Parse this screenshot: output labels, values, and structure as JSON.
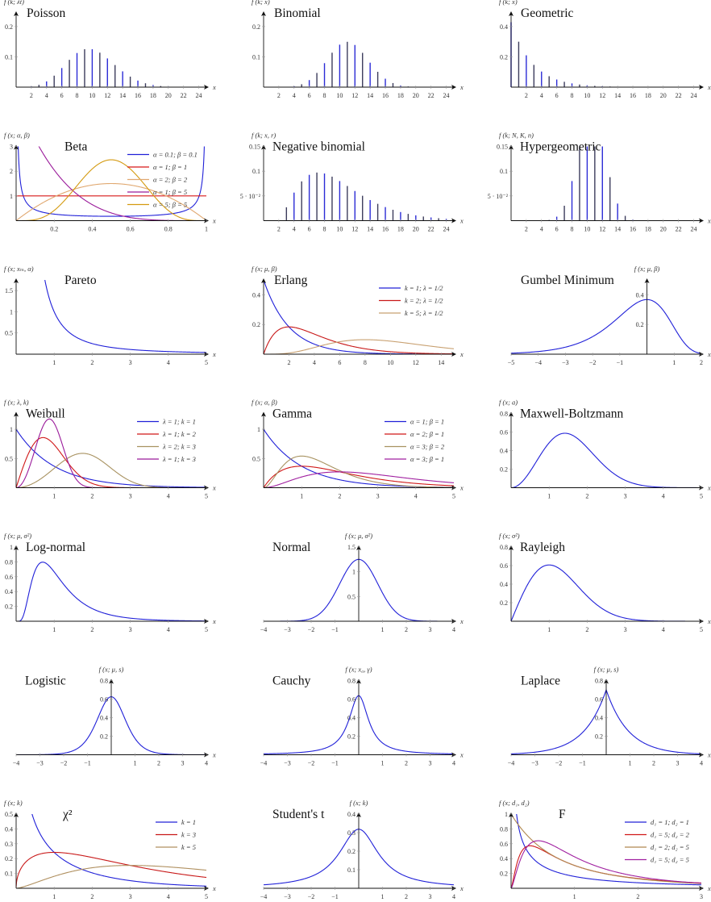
{
  "chart_data": [
    {
      "title": "Poisson",
      "type": "bar",
      "ylabel": "f (k; λt)",
      "xlabel": "x",
      "xlim": [
        0,
        25
      ],
      "ylim": [
        0,
        0.245
      ],
      "xticks": [
        2,
        4,
        6,
        8,
        10,
        12,
        14,
        16,
        18,
        20,
        22,
        24
      ],
      "yticks": [
        0.1,
        0.2
      ],
      "series": [
        {
          "distribution": "poisson",
          "params": {
            "lambda": 10
          },
          "k_range": [
            0,
            24
          ],
          "colors": [
            "#2b2bd6",
            "#3c3c5c"
          ]
        }
      ]
    },
    {
      "title": "Binomial",
      "type": "bar",
      "ylabel": "f (k; x)",
      "xlabel": "x",
      "xlim": [
        0,
        25
      ],
      "ylim": [
        0,
        0.245
      ],
      "xticks": [
        2,
        4,
        6,
        8,
        10,
        12,
        14,
        16,
        18,
        20,
        22,
        24
      ],
      "yticks": [
        0.1,
        0.2
      ],
      "series": [
        {
          "distribution": "binomial",
          "params": {
            "n": 30,
            "p": 0.37
          },
          "k_range": [
            0,
            24
          ],
          "colors": [
            "#2b2bd6",
            "#3c3c5c"
          ]
        }
      ]
    },
    {
      "title": "Geometric",
      "type": "bar",
      "ylabel": "f (k; x)",
      "xlabel": "x",
      "xlim": [
        0,
        25
      ],
      "ylim": [
        0,
        0.49
      ],
      "xticks": [
        2,
        4,
        6,
        8,
        10,
        12,
        14,
        16,
        18,
        20,
        22,
        24
      ],
      "yticks": [
        0.2,
        0.4
      ],
      "series": [
        {
          "distribution": "geometric",
          "params": {
            "p": 0.3
          },
          "k_range": [
            0,
            24
          ],
          "colors": [
            "#2b2bd6",
            "#3c3c5c"
          ]
        }
      ]
    },
    {
      "title": "Beta",
      "type": "line",
      "ylabel": "f (x; α, β)",
      "xlabel": "x",
      "xlim": [
        0,
        1
      ],
      "ylim": [
        0,
        3
      ],
      "xticks": [
        0.2,
        0.4,
        0.6,
        0.8,
        1
      ],
      "yticks": [
        1,
        2,
        3
      ],
      "legend_position": "top-right",
      "series": [
        {
          "name": "α = 0.1; β = 0.1",
          "distribution": "beta",
          "params": {
            "alpha": 0.1,
            "beta": 0.1
          },
          "color": "#2020d8"
        },
        {
          "name": "α = 1; β = 1",
          "distribution": "beta",
          "params": {
            "alpha": 1,
            "beta": 1
          },
          "color": "#d81818"
        },
        {
          "name": "α = 2; β = 2",
          "distribution": "beta",
          "params": {
            "alpha": 2,
            "beta": 2
          },
          "color": "#e0a870"
        },
        {
          "name": "α = 1; β = 5",
          "distribution": "beta",
          "params": {
            "alpha": 1,
            "beta": 5
          },
          "color": "#9a1a9a"
        },
        {
          "name": "α = 5; β = 5",
          "distribution": "beta",
          "params": {
            "alpha": 5,
            "beta": 5
          },
          "color": "#d49a10"
        }
      ]
    },
    {
      "title": "Negative binomial",
      "type": "bar",
      "ylabel": "f (k; x, r)",
      "xlabel": "x",
      "xlim": [
        0,
        25
      ],
      "ylim": [
        0,
        0.15
      ],
      "xticks": [
        2,
        4,
        6,
        8,
        10,
        12,
        14,
        16,
        18,
        20,
        22,
        24
      ],
      "yticks": [
        0.05,
        0.1,
        0.15
      ],
      "ytick_labels": [
        "5 · 10⁻²",
        "0.1",
        "0.15"
      ],
      "series": [
        {
          "distribution": "negative-binomial",
          "params": {
            "r": 3,
            "p": 0.3
          },
          "k_range": [
            3,
            24
          ],
          "colors": [
            "#2b2bd6",
            "#3c3c5c"
          ]
        }
      ]
    },
    {
      "title": "Hypergeometric",
      "type": "bar",
      "ylabel": "f (k; N, K, n)",
      "xlabel": "x",
      "xlim": [
        0,
        25
      ],
      "ylim": [
        0,
        0.15
      ],
      "xticks": [
        2,
        4,
        6,
        8,
        10,
        12,
        14,
        16,
        18,
        20,
        22,
        24
      ],
      "yticks": [
        0.05,
        0.1,
        0.15
      ],
      "ytick_labels": [
        "5 · 10⁻²",
        "0.1",
        "0.15"
      ],
      "series": [
        {
          "distribution": "hypergeometric",
          "params": {
            "N": 50,
            "K": 24,
            "n": 22
          },
          "k_range": [
            0,
            24
          ],
          "colors": [
            "#2b2bd6",
            "#3c3c5c"
          ]
        }
      ]
    },
    {
      "title": "Pareto",
      "type": "line",
      "ylabel": "f (x; xₘ, α)",
      "xlabel": "x",
      "xlim": [
        0,
        5
      ],
      "ylim": [
        0,
        1.75
      ],
      "xticks": [
        1,
        2,
        3,
        4,
        5
      ],
      "yticks": [
        0.5,
        1,
        1.5
      ],
      "series": [
        {
          "distribution": "pareto",
          "params": {
            "xm": 1,
            "alpha": 1
          },
          "color": "#2020d8"
        }
      ]
    },
    {
      "title": "Erlang",
      "type": "line",
      "ylabel": "f (x; μ, β)",
      "xlabel": "x",
      "xlim": [
        0,
        15
      ],
      "ylim": [
        0,
        0.5
      ],
      "xticks": [
        2,
        4,
        6,
        8,
        10,
        12,
        14
      ],
      "yticks": [
        0.2,
        0.4
      ],
      "legend_position": "top-right",
      "series": [
        {
          "name": "k = 1; λ = 1/2",
          "distribution": "erlang",
          "params": {
            "k": 1,
            "lambda": 0.5
          },
          "color": "#2020d8"
        },
        {
          "name": "k = 2; λ = 1/2",
          "distribution": "erlang",
          "params": {
            "k": 2,
            "lambda": 0.5
          },
          "color": "#c81818"
        },
        {
          "name": "k = 5; λ = 1/2",
          "distribution": "erlang",
          "params": {
            "k": 5,
            "lambda": 0.5
          },
          "color": "#c8a070"
        }
      ]
    },
    {
      "title": "Gumbel Minimum",
      "type": "line",
      "ylabel": "f (x; μ, β)",
      "xlabel": "x",
      "xlim": [
        -5,
        2
      ],
      "ylim": [
        0,
        0.5
      ],
      "xticks": [
        -5,
        -4,
        -3,
        -2,
        -1,
        1,
        2
      ],
      "yticks": [
        0.2,
        0.4
      ],
      "series": [
        {
          "distribution": "gumbel-min",
          "params": {
            "mu": 0,
            "beta": 1
          },
          "color": "#2020d8"
        }
      ]
    },
    {
      "title": "Weibull",
      "type": "line",
      "ylabel": "f (x; λ, k)",
      "xlabel": "x",
      "xlim": [
        0,
        5
      ],
      "ylim": [
        0,
        1.27
      ],
      "xticks": [
        1,
        2,
        3,
        4,
        5
      ],
      "yticks": [
        0.5,
        1
      ],
      "legend_position": "top-right",
      "series": [
        {
          "name": "λ = 1; k = 1",
          "distribution": "weibull",
          "params": {
            "lambda": 1,
            "k": 1
          },
          "color": "#2020d8"
        },
        {
          "name": "λ = 1; k = 2",
          "distribution": "weibull",
          "params": {
            "lambda": 1,
            "k": 2
          },
          "color": "#d01818"
        },
        {
          "name": "λ = 2; k = 3",
          "distribution": "weibull",
          "params": {
            "lambda": 2,
            "k": 3
          },
          "color": "#a89260"
        },
        {
          "name": "λ = 1; k = 3",
          "distribution": "weibull",
          "params": {
            "lambda": 1,
            "k": 3
          },
          "color": "#9a1a9a"
        }
      ]
    },
    {
      "title": "Gamma",
      "type": "line",
      "ylabel": "f (x; α, β)",
      "xlabel": "x",
      "xlim": [
        0,
        5
      ],
      "ylim": [
        0,
        1.27
      ],
      "xticks": [
        1,
        2,
        3,
        4,
        5
      ],
      "yticks": [
        0.5,
        1
      ],
      "legend_position": "top-right",
      "series": [
        {
          "name": "α = 1; β = 1",
          "distribution": "gamma",
          "params": {
            "alpha": 1,
            "beta": 1
          },
          "color": "#2020d8"
        },
        {
          "name": "α = 2; β = 1",
          "distribution": "gamma",
          "params": {
            "alpha": 2,
            "beta": 1
          },
          "color": "#d01818"
        },
        {
          "name": "α = 3; β = 2",
          "distribution": "gamma",
          "params": {
            "alpha": 3,
            "beta": 2
          },
          "color": "#a89260"
        },
        {
          "name": "α = 3; β = 1",
          "distribution": "gamma",
          "params": {
            "alpha": 3,
            "beta": 1
          },
          "color": "#a020a0"
        }
      ]
    },
    {
      "title": "Maxwell-Boltzmann",
      "type": "line",
      "ylabel": "f (x; a)",
      "xlabel": "x",
      "xlim": [
        0,
        5
      ],
      "ylim": [
        0,
        0.8
      ],
      "xticks": [
        1,
        2,
        3,
        4,
        5
      ],
      "yticks": [
        0.2,
        0.4,
        0.6,
        0.8
      ],
      "series": [
        {
          "distribution": "maxwell",
          "params": {
            "a": 1
          },
          "color": "#2020d8"
        }
      ]
    },
    {
      "title": "Log-normal",
      "type": "line",
      "ylabel": "f (x; μ, σ²)",
      "xlabel": "x",
      "xlim": [
        0,
        5
      ],
      "ylim": [
        0,
        1
      ],
      "xticks": [
        1,
        2,
        3,
        4,
        5
      ],
      "yticks": [
        0.2,
        0.4,
        0.6,
        0.8,
        1
      ],
      "series": [
        {
          "distribution": "lognormal",
          "params": {
            "mu": 0,
            "sigma": 0.6
          },
          "color": "#2020d8"
        }
      ]
    },
    {
      "title": "Normal",
      "type": "line",
      "ylabel": "f (x; μ, σ²)",
      "xlabel": "x",
      "xlim": [
        -4,
        4
      ],
      "ylim": [
        0,
        1.5
      ],
      "xticks": [
        -4,
        -3,
        -2,
        -1,
        1,
        2,
        3,
        4
      ],
      "yticks": [
        0.5,
        1,
        1.5
      ],
      "series": [
        {
          "distribution": "normal",
          "params": {
            "mu": 0,
            "sigma": 0.8,
            "peak": 1.25
          },
          "color": "#2020d8"
        }
      ]
    },
    {
      "title": "Rayleigh",
      "type": "line",
      "ylabel": "f (x; σ²)",
      "xlabel": "x",
      "xlim": [
        0,
        5
      ],
      "ylim": [
        0,
        0.8
      ],
      "xticks": [
        1,
        2,
        3,
        4,
        5
      ],
      "yticks": [
        0.2,
        0.4,
        0.6,
        0.8
      ],
      "series": [
        {
          "distribution": "rayleigh",
          "params": {
            "sigma": 1
          },
          "color": "#2020d8"
        }
      ]
    },
    {
      "title": "Logistic",
      "type": "line",
      "ylabel": "f (x; μ, s)",
      "xlabel": "x",
      "xlim": [
        -4,
        4
      ],
      "ylim": [
        0,
        0.8
      ],
      "xticks": [
        -4,
        -3,
        -2,
        -1,
        1,
        2,
        3,
        4
      ],
      "yticks": [
        0.2,
        0.4,
        0.6,
        0.8
      ],
      "series": [
        {
          "distribution": "logistic",
          "params": {
            "mu": 0,
            "s": 0.4
          },
          "color": "#2020d8"
        }
      ]
    },
    {
      "title": "Cauchy",
      "type": "line",
      "ylabel": "f (x; x₀, γ)",
      "xlabel": "x",
      "xlim": [
        -4,
        4
      ],
      "ylim": [
        0,
        0.8
      ],
      "xticks": [
        -4,
        -3,
        -2,
        -1,
        1,
        2,
        3,
        4
      ],
      "yticks": [
        0.2,
        0.4,
        0.6,
        0.8
      ],
      "series": [
        {
          "distribution": "cauchy",
          "params": {
            "x0": 0,
            "gamma": 0.5
          },
          "color": "#2020d8"
        }
      ]
    },
    {
      "title": "Laplace",
      "type": "line",
      "ylabel": "f (x; μ, s)",
      "xlabel": "x",
      "xlim": [
        -4,
        4
      ],
      "ylim": [
        0,
        0.8
      ],
      "xticks": [
        -4,
        -3,
        -2,
        -1,
        1,
        2,
        3,
        4
      ],
      "yticks": [
        0.2,
        0.4,
        0.6,
        0.8
      ],
      "series": [
        {
          "distribution": "laplace",
          "params": {
            "mu": 0,
            "b": 0.93,
            "peak": 0.7
          },
          "color": "#2020d8"
        }
      ]
    },
    {
      "title": "χ²",
      "type": "line",
      "ylabel": "f (x; k)",
      "xlabel": "x",
      "xlim": [
        0,
        5
      ],
      "ylim": [
        0,
        0.5
      ],
      "xticks": [
        1,
        2,
        3,
        4,
        5
      ],
      "yticks": [
        0.1,
        0.2,
        0.3,
        0.4,
        0.5
      ],
      "legend_position": "top-right",
      "series": [
        {
          "name": "k = 1",
          "distribution": "chi2",
          "params": {
            "k": 1
          },
          "color": "#2020d8"
        },
        {
          "name": "k = 3",
          "distribution": "chi2",
          "params": {
            "k": 3
          },
          "color": "#c81818"
        },
        {
          "name": "k = 5",
          "distribution": "chi2",
          "params": {
            "k": 5
          },
          "color": "#b09060"
        }
      ]
    },
    {
      "title": "Student's t",
      "type": "line",
      "ylabel": "f (x; k)",
      "xlabel": "x",
      "xlim": [
        -4,
        4
      ],
      "ylim": [
        0,
        0.4
      ],
      "xticks": [
        -4,
        -3,
        -2,
        -1,
        1,
        2,
        3,
        4
      ],
      "yticks": [
        0.1,
        0.2,
        0.3,
        0.4
      ],
      "series": [
        {
          "distribution": "student-t",
          "params": {
            "nu": 1
          },
          "color": "#2020d8"
        }
      ]
    },
    {
      "title": "F",
      "type": "line",
      "ylabel": "f (x; d₁, d₂)",
      "xlabel": "x",
      "xlim": [
        0,
        3
      ],
      "ylim": [
        0,
        1
      ],
      "xticks": [
        1,
        2,
        3
      ],
      "yticks": [
        0.2,
        0.4,
        0.6,
        0.8,
        1
      ],
      "legend_position": "top-right",
      "series": [
        {
          "name": "d₁ = 1; d₂ = 1",
          "distribution": "f",
          "params": {
            "d1": 1,
            "d2": 1
          },
          "color": "#2020d8"
        },
        {
          "name": "d₁ = 5; d₂ = 2",
          "distribution": "f",
          "params": {
            "d1": 5,
            "d2": 2
          },
          "color": "#d01818"
        },
        {
          "name": "d₁ = 2; d₂ = 5",
          "distribution": "f",
          "params": {
            "d1": 2,
            "d2": 5
          },
          "color": "#b08850"
        },
        {
          "name": "d₁ = 5; d₂ = 5",
          "distribution": "f",
          "params": {
            "d1": 5,
            "d2": 5
          },
          "color": "#a020a0"
        }
      ]
    }
  ]
}
